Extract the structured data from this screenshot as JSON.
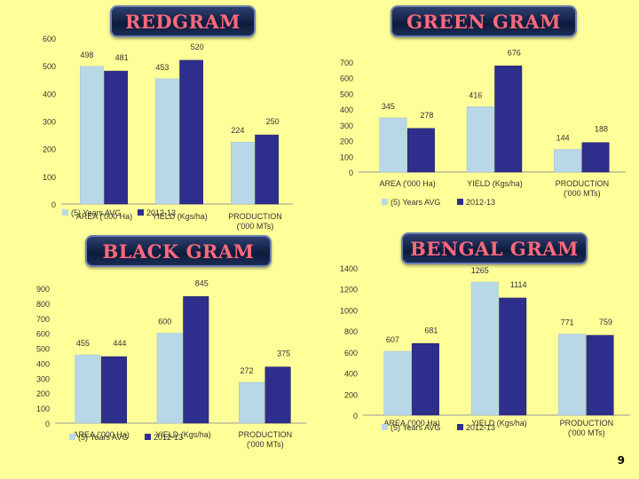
{
  "page_number": "9",
  "charts": [
    {
      "title": "REDGRAM",
      "chart_data": {
        "type": "bar",
        "categories": [
          "AREA ('000 Ha)",
          "YIELD (Kgs/ha)",
          "PRODUCTION ('000 MTs)"
        ],
        "series": [
          {
            "name": "(5) Years AVG",
            "values": [
              498,
              453,
              224
            ]
          },
          {
            "name": "2012-13",
            "values": [
              481,
              520,
              250
            ]
          }
        ],
        "yticks": [
          0,
          100,
          200,
          300,
          400,
          500,
          600
        ],
        "ylim": [
          0,
          600
        ]
      }
    },
    {
      "title": "GREEN GRAM",
      "chart_data": {
        "type": "bar",
        "categories": [
          "AREA ('000 Ha)",
          "YIELD (Kgs/ha)",
          "PRODUCTION ('000 MTs)"
        ],
        "series": [
          {
            "name": "(5) Years AVG",
            "values": [
              345,
              416,
              144
            ]
          },
          {
            "name": "2012-13",
            "values": [
              278,
              676,
              188
            ]
          }
        ],
        "yticks": [
          0,
          100,
          200,
          300,
          400,
          500,
          600,
          700
        ],
        "ylim": [
          0,
          700
        ]
      }
    },
    {
      "title": "BLACK GRAM",
      "chart_data": {
        "type": "bar",
        "categories": [
          "AREA ('000 Ha)",
          "YIELD (Kgs/ha)",
          "PRODUCTION ('000 MTs)"
        ],
        "series": [
          {
            "name": "(5) Years AVG",
            "values": [
              455,
              600,
              272
            ]
          },
          {
            "name": "2012-13",
            "values": [
              444,
              845,
              375
            ]
          }
        ],
        "yticks": [
          0,
          100,
          200,
          300,
          400,
          500,
          600,
          700,
          800,
          900
        ],
        "ylim": [
          0,
          900
        ]
      }
    },
    {
      "title": "BENGAL GRAM",
      "chart_data": {
        "type": "bar",
        "categories": [
          "AREA ('000 Ha)",
          "YIELD (Kgs/ha)",
          "PRODUCTION ('000 MTs)"
        ],
        "series": [
          {
            "name": "(5) Years AVG",
            "values": [
              607,
              1265,
              771
            ]
          },
          {
            "name": "2012-13",
            "values": [
              681,
              1114,
              759
            ]
          }
        ],
        "yticks": [
          0,
          200,
          400,
          600,
          800,
          1000,
          1200,
          1400
        ],
        "ylim": [
          0,
          1400
        ]
      }
    }
  ],
  "colors": {
    "series_0": "#b8d8e8",
    "series_1": "#2e2e8c"
  }
}
